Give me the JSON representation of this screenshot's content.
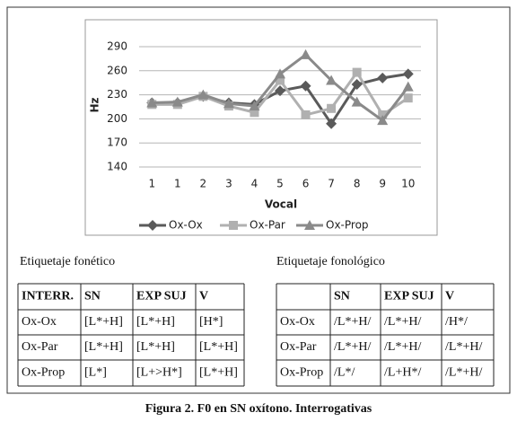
{
  "chart_data": {
    "type": "line",
    "x_label": "Vocal",
    "y_label": "Hz",
    "categories": [
      "1",
      "1",
      "2",
      "3",
      "4",
      "5",
      "6",
      "7",
      "8",
      "9",
      "10"
    ],
    "ylim": [
      140,
      290
    ],
    "yticks": [
      140,
      170,
      200,
      230,
      260,
      290
    ],
    "grid": true,
    "legend": "bottom",
    "series": [
      {
        "name": "Ox-Ox",
        "color": "#5a5a5a",
        "marker": "diamond",
        "values": [
          220,
          220,
          228,
          220,
          218,
          235,
          241,
          194,
          243,
          251,
          256
        ]
      },
      {
        "name": "Ox-Par",
        "color": "#b0b0b0",
        "marker": "square",
        "values": [
          218,
          218,
          228,
          216,
          208,
          248,
          205,
          213,
          258,
          205,
          226
        ]
      },
      {
        "name": "Ox-Prop",
        "color": "#8a8a8a",
        "marker": "triangle",
        "values": [
          220,
          221,
          230,
          219,
          216,
          256,
          280,
          248,
          221,
          198,
          240
        ]
      }
    ]
  },
  "tables": [
    {
      "title": "Etiquetaje fonético",
      "header": [
        "INTERR.",
        "SN",
        "EXP SUJ",
        "V"
      ],
      "rows": [
        [
          "Ox-Ox",
          "[L*+H]",
          "[L*+H]",
          "[H*]"
        ],
        [
          "Ox-Par",
          "[L*+H]",
          "[L*+H]",
          "[L*+H]"
        ],
        [
          "Ox-Prop",
          "[L*]",
          "[L+>H*]",
          "[L*+H]"
        ]
      ]
    },
    {
      "title": "Etiquetaje fonológico",
      "header": [
        "SN",
        "EXP SUJ",
        "V"
      ],
      "rows": [
        [
          "Ox-Ox",
          "/L*+H/",
          "/L*+H/",
          "/H*/"
        ],
        [
          "Ox-Par",
          "/L*+H/",
          "/L*+H/",
          "/L*+H/"
        ],
        [
          "Ox-Prop",
          "/L*/",
          "/L+H*/",
          "/L*+H/"
        ]
      ]
    }
  ],
  "caption": "Figura 2. F0 en SN oxítono. Interrogativas"
}
